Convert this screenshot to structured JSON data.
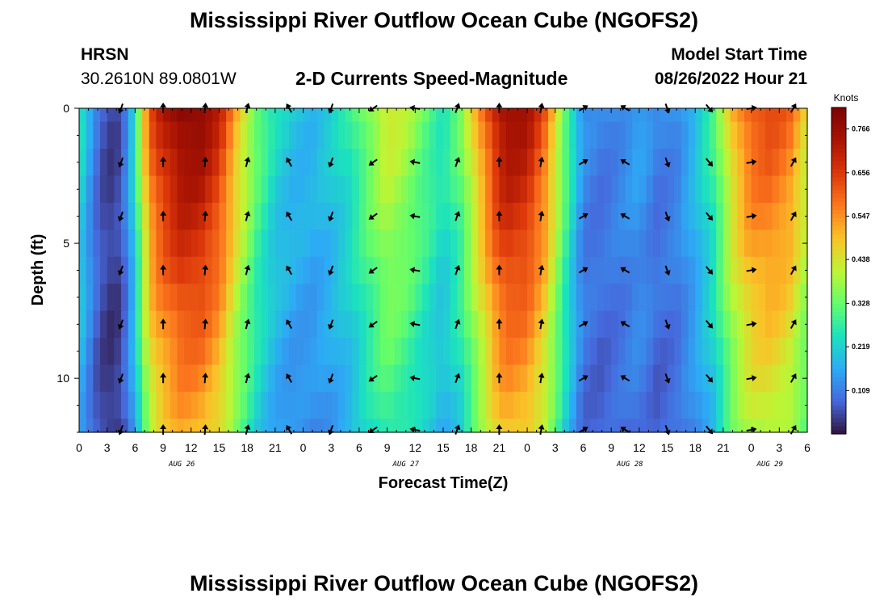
{
  "page": {
    "title": "Mississippi River Outflow Ocean Cube (NGOFS2)",
    "title_repeat": "Mississippi River Outflow Ocean Cube (NGOFS2)",
    "station_id": "HRSN",
    "station_coords": "30.2610N  89.0801W",
    "subtitle": "2-D Currents Speed-Magnitude",
    "model_start_label": "Model Start Time",
    "model_start_value": "08/26/2022 Hour 21"
  },
  "chart_data": {
    "type": "heatmap",
    "title": "2-D Currents Speed-Magnitude",
    "xlabel": "Forecast Time(Z)",
    "ylabel": "Depth (ft)",
    "colorbar_label": "Knots",
    "x_ticks": [
      "0",
      "3",
      "6",
      "9",
      "12",
      "15",
      "18",
      "21",
      "0",
      "3",
      "6",
      "9",
      "12",
      "15",
      "18",
      "21",
      "0",
      "3",
      "6",
      "9",
      "12",
      "15",
      "18",
      "21",
      "0",
      "3",
      "6"
    ],
    "x_range_hours": [
      0,
      78
    ],
    "x_date_labels": [
      {
        "label": "AUG 26",
        "hour": 11
      },
      {
        "label": "AUG 27",
        "hour": 35
      },
      {
        "label": "AUG 28",
        "hour": 59
      },
      {
        "label": "AUG 29",
        "hour": 74
      }
    ],
    "y_ticks": [
      "0",
      "5",
      "10"
    ],
    "y_tick_values": [
      0,
      5,
      10
    ],
    "y_range": [
      0,
      12
    ],
    "depth_levels": [
      0,
      1,
      2,
      3,
      4,
      5,
      6,
      7,
      8,
      9,
      10,
      11,
      12
    ],
    "colorbar_ticks": [
      "0.109",
      "0.219",
      "0.328",
      "0.438",
      "0.547",
      "0.656",
      "0.766"
    ],
    "colorbar_tick_values": [
      0.109,
      0.219,
      0.328,
      0.438,
      0.547,
      0.656,
      0.766
    ],
    "colorbar_range": [
      0.0,
      0.82
    ],
    "surface_speed_profile": {
      "hours": [
        0,
        1,
        2,
        3,
        4,
        5,
        6,
        7,
        8,
        9,
        11,
        13,
        15,
        17,
        19,
        21,
        23,
        25,
        27,
        29,
        31,
        33,
        35,
        37,
        39,
        41,
        43,
        45,
        46,
        48,
        50,
        52,
        54,
        56,
        58,
        60,
        62,
        64,
        66,
        68,
        70,
        72,
        74,
        76,
        78
      ],
      "speeds": [
        0.27,
        0.17,
        0.09,
        0.05,
        0.05,
        0.12,
        0.26,
        0.5,
        0.66,
        0.72,
        0.8,
        0.79,
        0.7,
        0.5,
        0.34,
        0.24,
        0.2,
        0.19,
        0.22,
        0.27,
        0.36,
        0.44,
        0.4,
        0.33,
        0.26,
        0.35,
        0.55,
        0.74,
        0.77,
        0.75,
        0.6,
        0.34,
        0.13,
        0.11,
        0.13,
        0.16,
        0.11,
        0.13,
        0.2,
        0.3,
        0.5,
        0.62,
        0.64,
        0.6,
        0.45
      ]
    },
    "depth_attenuation": "speed decreases gradually with depth; bottom layer ~60% of surface",
    "vector_hours": [
      4.5,
      9,
      13.5,
      18,
      22.5,
      27,
      31.5,
      36,
      40.5,
      45,
      49.5,
      54,
      58.5,
      63,
      67.5,
      72,
      76.5
    ],
    "vector_depths": [
      0,
      2,
      4,
      6,
      8,
      10,
      12
    ],
    "vector_directions_deg": [
      200,
      0,
      5,
      15,
      330,
      200,
      235,
      280,
      20,
      0,
      10,
      60,
      300,
      160,
      140,
      80,
      30
    ]
  }
}
